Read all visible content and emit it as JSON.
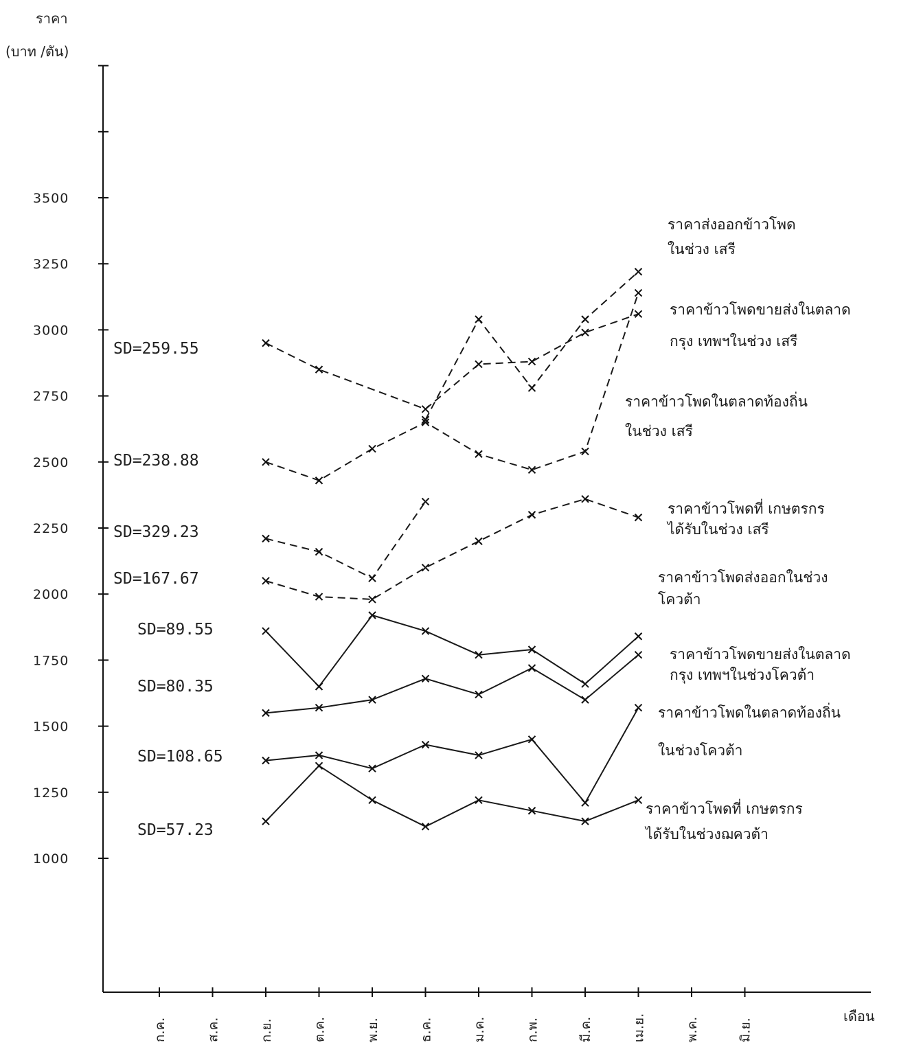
{
  "chart_data": {
    "type": "line",
    "ylabel": "ราคา",
    "ylabel_unit": "(บาท /ตัน)",
    "xlabel": "เดือน",
    "y_ticks": [
      1000,
      1250,
      1500,
      1750,
      2000,
      2250,
      2500,
      2750,
      3000,
      3250,
      3500
    ],
    "ylim": [
      0,
      3750
    ],
    "grid": false,
    "legend_placement": "right (labels beside each line)",
    "categories": [
      "ก.ค.",
      "ส.ค.",
      "ก.ย.",
      "ต.ค.",
      "พ.ย.",
      "ธ.ค.",
      "ม.ค.",
      "ก.พ.",
      "มี.ค.",
      "เม.ย.",
      "พ.ค.",
      "มิ.ย."
    ],
    "series": [
      {
        "name": "ราคาส่งออกข้าวโพด ในช่วง เสรี",
        "sd_label": "SD=259.55",
        "style": "dashed",
        "values": [
          null,
          null,
          null,
          null,
          null,
          2660,
          3040,
          2780,
          3040,
          3220,
          null,
          null
        ]
      },
      {
        "name": "ราคาข้าวโพดขายส่งในตลาด กรุง เทพฯในช่วง เสรี",
        "sd_label": "",
        "style": "dashed",
        "values": [
          null,
          null,
          2950,
          2850,
          null,
          2700,
          2870,
          2880,
          2990,
          3060,
          null,
          null
        ]
      },
      {
        "name": "ราคาข้าวโพดในตลาดท้องถิ่น ในช่วง เสรี",
        "sd_label": "SD=238.88",
        "style": "dashed",
        "values": [
          null,
          null,
          2500,
          2430,
          2550,
          2650,
          2530,
          2470,
          2540,
          3140,
          null,
          null
        ]
      },
      {
        "name": "ราคาข้าวโพดที่ เกษตรกร ได้รับในช่วง เสรี",
        "sd_label": "SD=329.23",
        "style": "dashed",
        "values": [
          null,
          null,
          2210,
          2160,
          2060,
          2350,
          null,
          null,
          null,
          null,
          null,
          null
        ]
      },
      {
        "name": "",
        "sd_label": "SD=167.67",
        "style": "dashed",
        "values": [
          null,
          null,
          2050,
          1990,
          1980,
          2100,
          2200,
          2300,
          2360,
          2290,
          null,
          null
        ]
      },
      {
        "name": "ราคาข้าวโพดส่งออกในช่วง โควต้า",
        "sd_label": "SD=89.55",
        "style": "solid",
        "values": [
          null,
          null,
          1860,
          1650,
          1920,
          1860,
          1770,
          1790,
          1660,
          1840,
          null,
          null
        ]
      },
      {
        "name": "ราคาข้าวโพดขายส่งในตลาด กรุง เทพฯในช่วงโควต้า",
        "sd_label": "SD=80.35",
        "style": "solid",
        "values": [
          null,
          null,
          1550,
          1570,
          1600,
          1680,
          1620,
          1720,
          1600,
          1770,
          null,
          null
        ]
      },
      {
        "name": "ราคาข้าวโพดในตลาดท้องถิ่น ในช่วงโควต้า",
        "sd_label": "SD=108.65",
        "style": "solid",
        "values": [
          null,
          null,
          1370,
          1390,
          1340,
          1430,
          1390,
          1450,
          1210,
          1570,
          null,
          null
        ]
      },
      {
        "name": "ราคาข้าวโพดที่ เกษตรกร ได้รับในช่วงฌควต้า",
        "sd_label": "SD=57.23",
        "style": "solid",
        "values": [
          null,
          null,
          1140,
          1350,
          1220,
          1120,
          1220,
          1180,
          1140,
          1220,
          null,
          null
        ]
      }
    ]
  },
  "chart_labels": {
    "ylabel_line1": "ราคา",
    "ylabel_line2": "(บาท /ตัน)",
    "xlabel": "เดือน",
    "tick_labels": [
      "1000",
      "1250",
      "1500",
      "1750",
      "2000",
      "2250",
      "2500",
      "2750",
      "3000",
      "3250",
      "3500"
    ],
    "sd_labels": [
      "SD=259.55",
      "SD=238.88",
      "SD=329.23",
      "SD=167.67",
      "SD=89.55",
      "SD=80.35",
      "SD=108.65",
      "SD=57.23"
    ],
    "legend_labels": [
      {
        "line1": "ราคาส่งออกข้าวโพด",
        "line2": "ในช่วง เสรี"
      },
      {
        "line1": "ราคาข้าวโพดขายส่งในตลาด",
        "line2": "กรุง เทพฯในช่วง เสรี"
      },
      {
        "line1": "ราคาข้าวโพดในตลาดท้องถิ่น",
        "line2": "ในช่วง เสรี"
      },
      {
        "line1": "ราคาข้าวโพดที่ เกษตรกร",
        "line2": "ได้รับในช่วง เสรี"
      },
      {
        "line1": "ราคาข้าวโพดส่งออกในช่วง",
        "line2": "โควต้า"
      },
      {
        "line1": "ราคาข้าวโพดขายส่งในตลาด",
        "line2": "กรุง เทพฯในช่วงโควต้า"
      },
      {
        "line1": "ราคาข้าวโพดในตลาดท้องถิ่น",
        "line2": "ในช่วงโควต้า"
      },
      {
        "line1": "ราคาข้าวโพดที่ เกษตรกร",
        "line2": "ได้รับในช่วงฌควต้า"
      }
    ]
  }
}
